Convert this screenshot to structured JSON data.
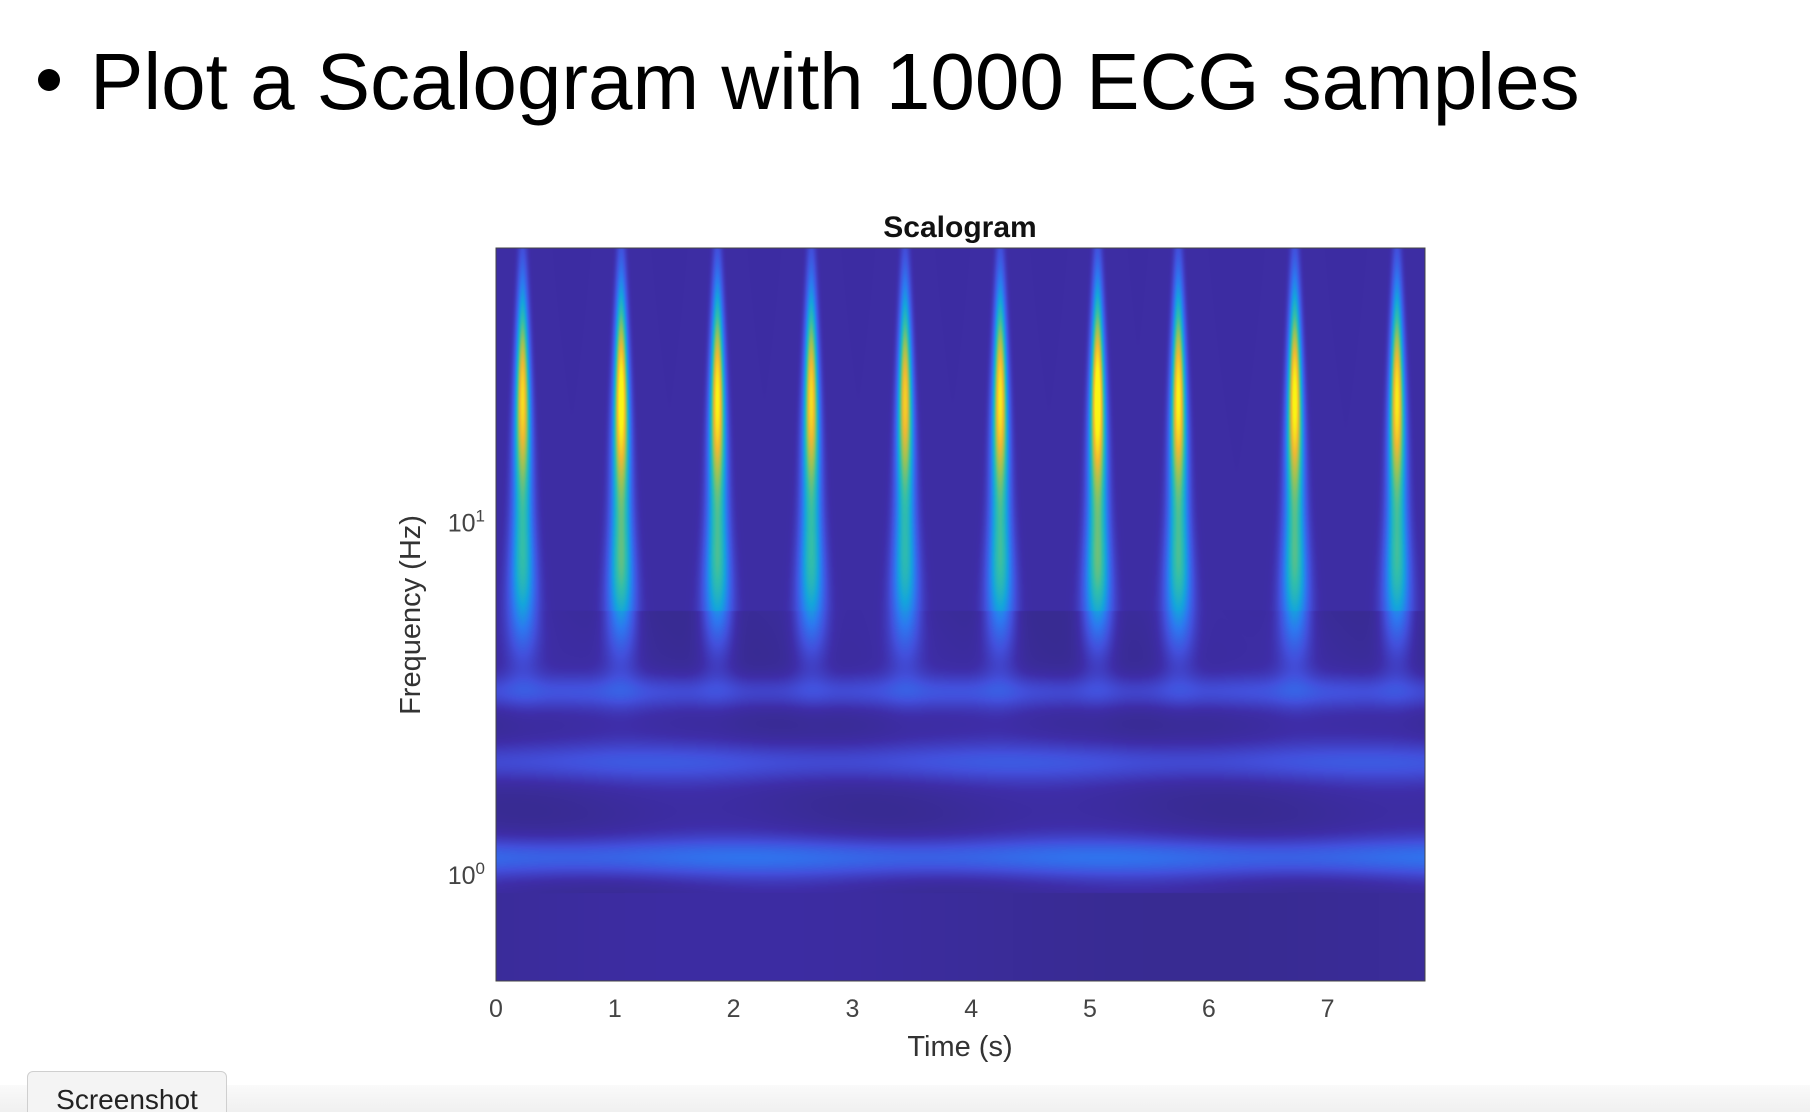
{
  "slide": {
    "bullet_text": "Plot a Scalogram with 1000 ECG samples"
  },
  "chart_data": {
    "type": "heatmap",
    "title": "Scalogram",
    "xlabel": "Time (s)",
    "ylabel": "Frequency (Hz)",
    "x_ticks": [
      "0",
      "1",
      "2",
      "3",
      "4",
      "5",
      "6",
      "7"
    ],
    "xlim": [
      0,
      7.82
    ],
    "y_scale": "log",
    "y_ticks": [
      {
        "base": "10",
        "exp": "1",
        "value": 10
      },
      {
        "base": "10",
        "exp": "0",
        "value": 1
      }
    ],
    "ylim": [
      0.5,
      60
    ],
    "colormap": "parula",
    "r_peak_times_s": [
      0.22,
      1.05,
      1.86,
      2.65,
      3.44,
      4.24,
      5.06,
      5.74,
      6.72,
      7.58
    ],
    "r_peak_intensity": [
      0.85,
      0.95,
      0.9,
      0.85,
      0.82,
      0.88,
      0.97,
      0.9,
      0.92,
      0.88
    ]
  },
  "ui": {
    "screenshot_button_label": "Screenshot"
  }
}
